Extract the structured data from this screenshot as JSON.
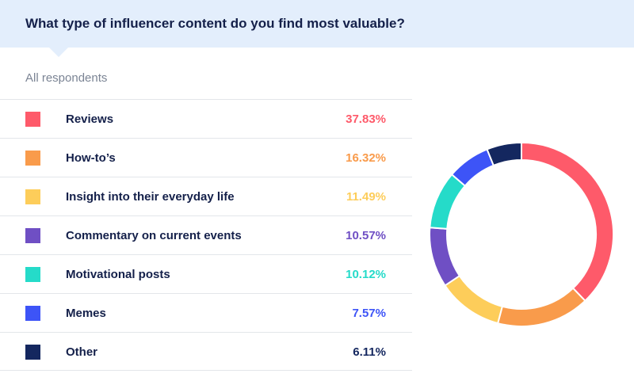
{
  "header": {
    "title": "What type of influencer content do you find most valuable?"
  },
  "subtitle": "All respondents",
  "chart_data": {
    "type": "pie",
    "variant": "donut",
    "title": "What type of influencer content do you find most valuable?",
    "subtitle": "All respondents",
    "legend_position": "left",
    "slices": [
      {
        "label": "Reviews",
        "value": 37.83,
        "display": "37.83%",
        "color": "#fe5a6a"
      },
      {
        "label": "How-to’s",
        "value": 16.32,
        "display": "16.32%",
        "color": "#f99b4b"
      },
      {
        "label": "Insight into their everyday life",
        "value": 11.49,
        "display": "11.49%",
        "color": "#fdcd5a"
      },
      {
        "label": "Commentary on current events",
        "value": 10.57,
        "display": "10.57%",
        "color": "#6f4fc4"
      },
      {
        "label": "Motivational posts",
        "value": 10.12,
        "display": "10.12%",
        "color": "#25dbc9"
      },
      {
        "label": "Memes",
        "value": 7.57,
        "display": "7.57%",
        "color": "#3d54f7"
      },
      {
        "label": "Other",
        "value": 6.11,
        "display": "6.11%",
        "color": "#14275f"
      }
    ]
  }
}
